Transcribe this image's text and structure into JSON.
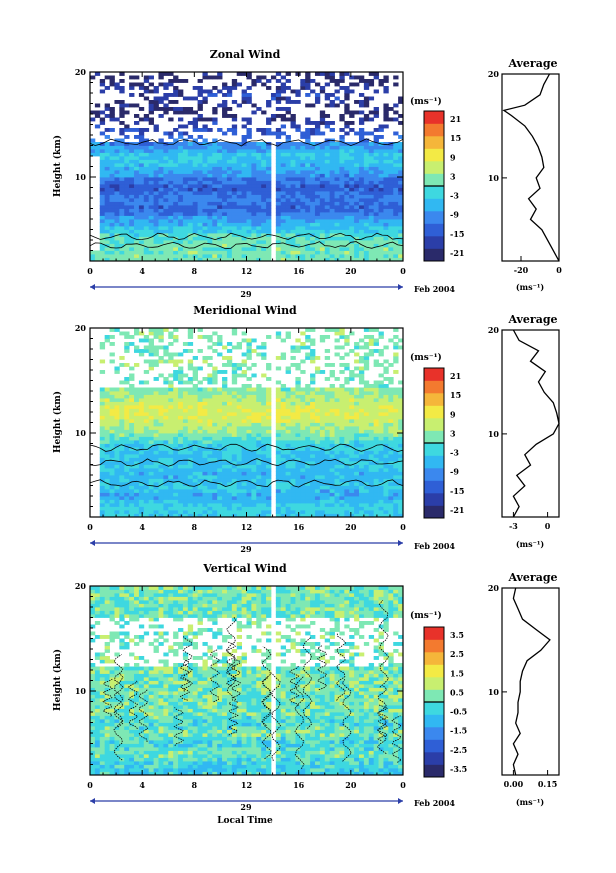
{
  "chart_data": [
    {
      "type": "heatmap",
      "title": "Zonal Wind",
      "ylabel": "Height (km)",
      "xlabel": "",
      "xlim": [
        0,
        24
      ],
      "ylim": [
        2,
        20
      ],
      "x_ticks": [
        "0",
        "4",
        "8",
        "12",
        "16",
        "20",
        "0"
      ],
      "y_ticks": [
        "10",
        "20"
      ],
      "day_label": "29",
      "date_label": "Feb 2004",
      "colorbar": {
        "unit": "(ms⁻¹)",
        "ticks": [
          "21",
          "15",
          "9",
          "3",
          "-3",
          "-9",
          "-15",
          "-21"
        ],
        "range": [
          -24,
          24
        ]
      },
      "rows": [
        {
          "z": 3,
          "v": 1.5
        },
        {
          "z": 4,
          "v": 1
        },
        {
          "z": 5,
          "v": -4
        },
        {
          "z": 6,
          "v": -8
        },
        {
          "z": 7,
          "v": -14
        },
        {
          "z": 8,
          "v": -11
        },
        {
          "z": 9,
          "v": -15
        },
        {
          "z": 10,
          "v": -10
        },
        {
          "z": 11,
          "v": -6
        },
        {
          "z": 12,
          "v": -4
        },
        {
          "z": 13,
          "v": -9
        },
        {
          "z": 14,
          "v": -14
        },
        {
          "z": 15,
          "v": -18
        },
        {
          "z": 16,
          "v": -22
        },
        {
          "z": 17,
          "v": -19
        },
        {
          "z": 18,
          "v": -18
        },
        {
          "z": 19,
          "v": -21
        }
      ],
      "gaps": [
        {
          "x0": 0,
          "x1": 0.6,
          "z0": 3,
          "z1": 12
        },
        {
          "x0": 13.7,
          "x1": 14.1,
          "z0": 2,
          "z1": 14
        },
        {
          "x0": 0,
          "x1": 24,
          "z0": 13.2,
          "z1": 20,
          "pattern": "sparse"
        }
      ],
      "average": {
        "title": "Average",
        "xlabel": "(ms⁻¹)",
        "xlim": [
          -30,
          0
        ],
        "x_ticks": [
          "-20",
          "0"
        ],
        "y_ticks": [
          "10",
          "20"
        ],
        "z": [
          2,
          3,
          4,
          5,
          6,
          7,
          8,
          9,
          10,
          11,
          12,
          13,
          14,
          15,
          16,
          16.5,
          17,
          18,
          19,
          20
        ],
        "values": [
          0,
          -3,
          -6,
          -9,
          -15,
          -12,
          -16,
          -10,
          -12,
          -8,
          -9,
          -11,
          -14,
          -18,
          -25,
          -29,
          -18,
          -10,
          -8,
          -5
        ]
      }
    },
    {
      "type": "heatmap",
      "title": "Meridional Wind",
      "ylabel": "Height (km)",
      "xlabel": "",
      "xlim": [
        0,
        24
      ],
      "ylim": [
        2,
        20
      ],
      "x_ticks": [
        "0",
        "4",
        "8",
        "12",
        "16",
        "20",
        "0"
      ],
      "y_ticks": [
        "10",
        "20"
      ],
      "day_label": "29",
      "date_label": "Feb 2004",
      "colorbar": {
        "unit": "(ms⁻¹)",
        "ticks": [
          "21",
          "15",
          "9",
          "3",
          "-3",
          "-9",
          "-15",
          "-21"
        ],
        "range": [
          -24,
          24
        ]
      },
      "rows": [
        {
          "z": 3,
          "v": -3
        },
        {
          "z": 4,
          "v": -7
        },
        {
          "z": 5,
          "v": -4
        },
        {
          "z": 6,
          "v": -6
        },
        {
          "z": 7,
          "v": -4
        },
        {
          "z": 8,
          "v": -5
        },
        {
          "z": 9,
          "v": -3
        },
        {
          "z": 10,
          "v": 3
        },
        {
          "z": 11,
          "v": 6
        },
        {
          "z": 12,
          "v": 8
        },
        {
          "z": 13,
          "v": 6
        },
        {
          "z": 14,
          "v": 3
        },
        {
          "z": 15,
          "v": 1
        },
        {
          "z": 16,
          "v": 2
        },
        {
          "z": 17,
          "v": 3
        },
        {
          "z": 18,
          "v": 1
        },
        {
          "z": 19,
          "v": 2
        }
      ],
      "gaps": [
        {
          "x0": 0,
          "x1": 0.6,
          "z0": 2,
          "z1": 20
        },
        {
          "x0": 13.7,
          "x1": 14.1,
          "z0": 2,
          "z1": 20
        },
        {
          "x0": 0,
          "x1": 24,
          "z0": 14.5,
          "z1": 20,
          "pattern": "sparse"
        }
      ],
      "average": {
        "title": "Average",
        "xlabel": "(ms⁻¹)",
        "xlim": [
          -4,
          1
        ],
        "x_ticks": [
          "-3",
          "0"
        ],
        "y_ticks": [
          "10",
          "20"
        ],
        "z": [
          2,
          3,
          4,
          5,
          6,
          7,
          8,
          9,
          10,
          11,
          12,
          13,
          14,
          15,
          16,
          17,
          18,
          19,
          20
        ],
        "values": [
          -3,
          -2.5,
          -3,
          -2,
          -2.7,
          -1.5,
          -2,
          -1,
          0.5,
          1,
          0.8,
          0.5,
          -0.3,
          -0.8,
          -0.2,
          -1.5,
          -0.8,
          -2.5,
          -3
        ]
      }
    },
    {
      "type": "heatmap",
      "title": "Vertical Wind",
      "ylabel": "Height (km)",
      "xlabel": "Local Time",
      "xlim": [
        0,
        24
      ],
      "ylim": [
        2,
        20
      ],
      "x_ticks": [
        "0",
        "4",
        "8",
        "12",
        "16",
        "20",
        "0"
      ],
      "y_ticks": [
        "10",
        "20"
      ],
      "day_label": "29",
      "date_label": "Feb 2004",
      "colorbar": {
        "unit": "(ms⁻¹)",
        "ticks": [
          "3.5",
          "2.5",
          "1.5",
          "0.5",
          "-0.5",
          "-1.5",
          "-2.5",
          "-3.5"
        ],
        "range": [
          -4,
          4
        ]
      },
      "rows": [
        {
          "z": 3,
          "v": -0.5
        },
        {
          "z": 4,
          "v": 0.2
        },
        {
          "z": 5,
          "v": -0.4
        },
        {
          "z": 6,
          "v": 0.3
        },
        {
          "z": 7,
          "v": -0.3
        },
        {
          "z": 8,
          "v": 0.3
        },
        {
          "z": 9,
          "v": 0.2
        },
        {
          "z": 10,
          "v": 0.3
        },
        {
          "z": 11,
          "v": 0.3
        },
        {
          "z": 12,
          "v": 0.2
        },
        {
          "z": 13,
          "v": 0.3
        },
        {
          "z": 14,
          "v": 0.3
        },
        {
          "z": 15,
          "v": 0.2
        },
        {
          "z": 16,
          "v": 0.3
        },
        {
          "z": 17,
          "v": 0.2
        },
        {
          "z": 18,
          "v": 0.3
        },
        {
          "z": 19,
          "v": 0.2
        }
      ],
      "gaps": [
        {
          "x0": 13.7,
          "x1": 14.1,
          "z0": 2,
          "z1": 20
        },
        {
          "x0": 0,
          "x1": 24,
          "z0": 12.5,
          "z1": 17,
          "pattern": "sparse"
        }
      ],
      "average": {
        "title": "Average",
        "xlabel": "(ms⁻¹)",
        "xlim": [
          -0.05,
          0.2
        ],
        "x_ticks": [
          "0.00",
          "0.15"
        ],
        "y_ticks": [
          "10",
          "20"
        ],
        "z": [
          2,
          3,
          4,
          5,
          6,
          7,
          8,
          9,
          10,
          11,
          12,
          13,
          14,
          15,
          16,
          17,
          18,
          19,
          20
        ],
        "values": [
          0.01,
          0.0,
          0.02,
          0.0,
          0.03,
          0.01,
          0.02,
          0.02,
          0.03,
          0.03,
          0.04,
          0.06,
          0.12,
          0.16,
          0.1,
          0.04,
          0.02,
          0.0,
          0.01
        ]
      }
    }
  ]
}
